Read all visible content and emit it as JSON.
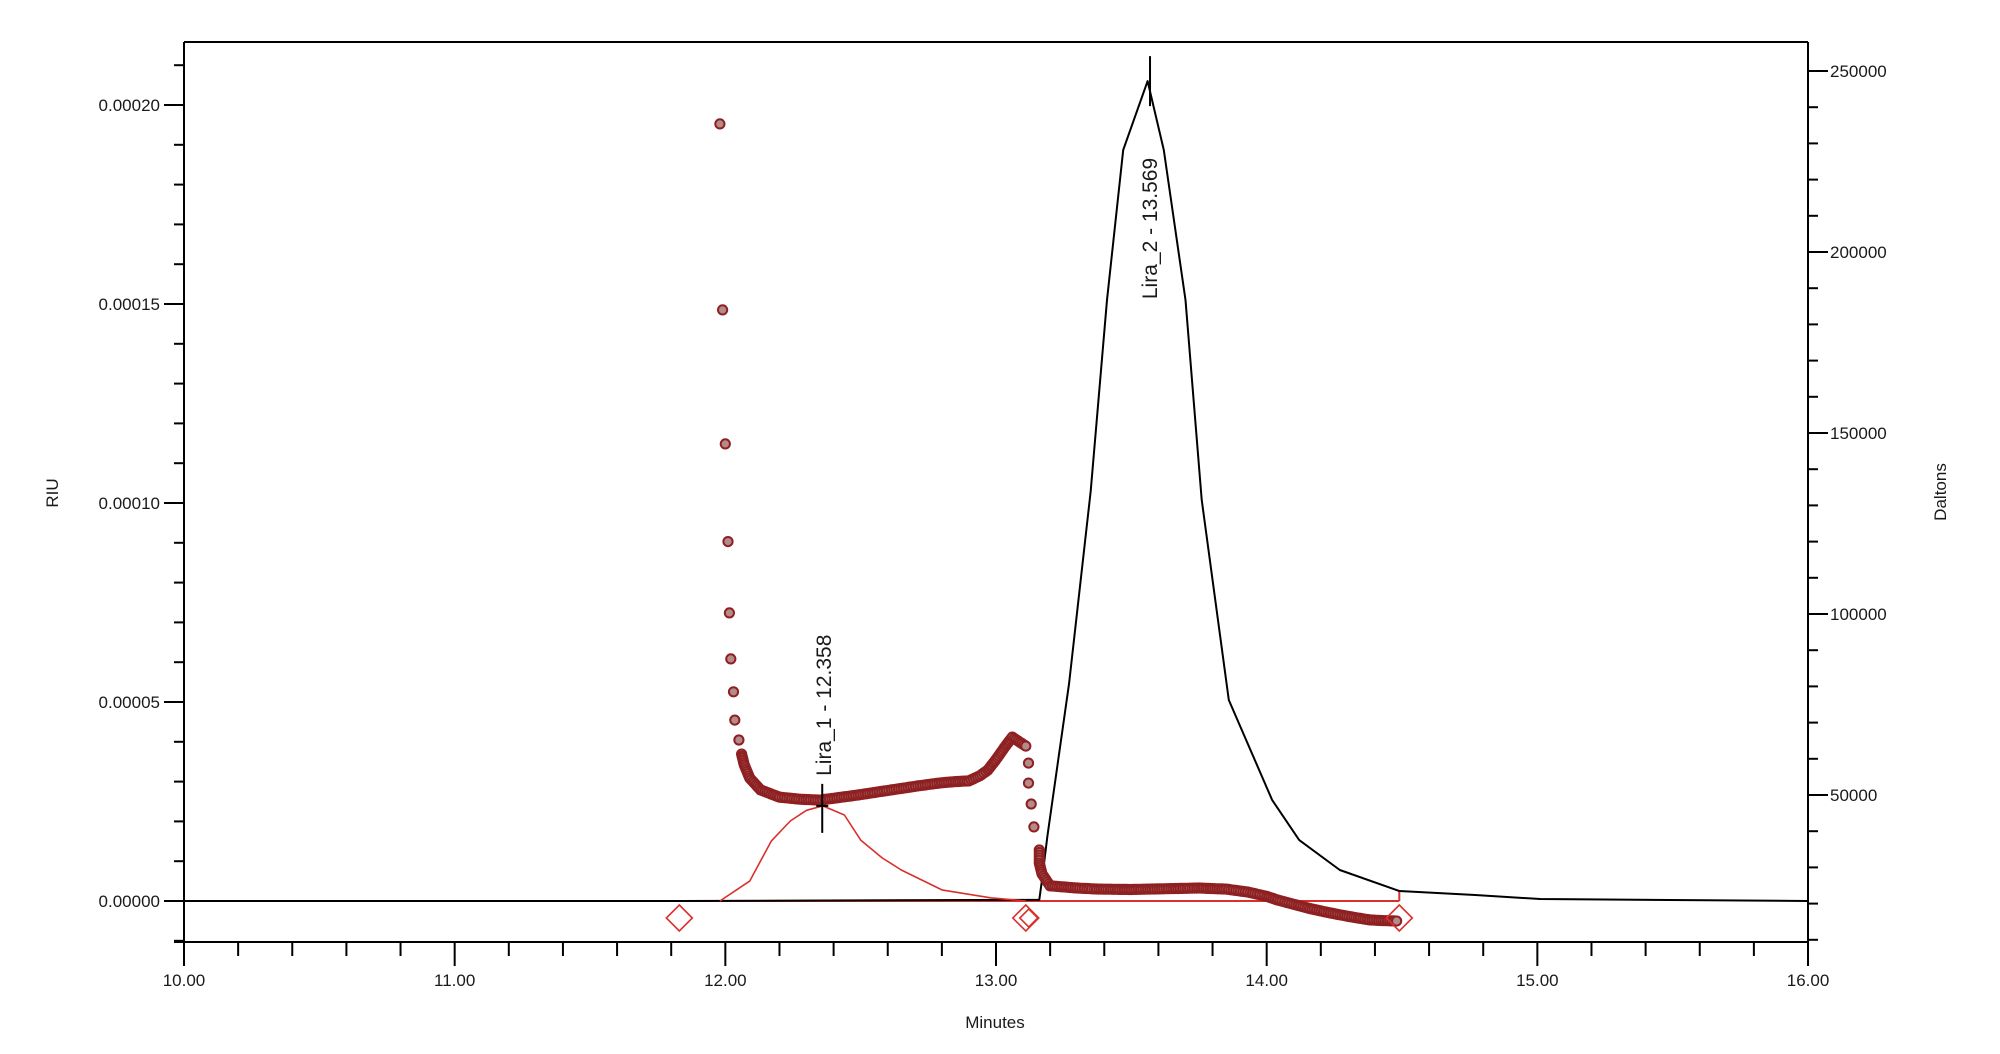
{
  "chart_data": {
    "type": "line",
    "title": "",
    "xlabel": "Minutes",
    "ylabel": "RIU",
    "y2label": "Daltons",
    "xlim": [
      10.0,
      16.0
    ],
    "ylim": [
      -1e-05,
      0.000218
    ],
    "y2lim": [
      8000,
      277000
    ],
    "grid": false,
    "legend": null,
    "x_ticks": [
      "10.00",
      "11.00",
      "12.00",
      "13.00",
      "14.00",
      "15.00",
      "16.00"
    ],
    "x_tick_values": [
      10,
      11,
      12,
      13,
      14,
      15,
      16
    ],
    "x_minor_step": 0.2,
    "y_ticks": [
      "0.00000",
      "0.00005",
      "0.00010",
      "0.00015",
      "0.00020"
    ],
    "y_tick_values": [
      0,
      5e-05,
      0.0001,
      0.00015,
      0.0002
    ],
    "y_minor_step": 1e-05,
    "y2_ticks": [
      "50000",
      "100000",
      "150000",
      "200000",
      "250000"
    ],
    "y2_tick_values": [
      50000,
      100000,
      150000,
      200000,
      250000
    ],
    "y2_minor_step": 10000,
    "series": [
      {
        "name": "RI chromatogram",
        "axis": "left",
        "color": "#000000",
        "style": "line",
        "x": [
          10.0,
          11.83,
          13.16,
          13.17,
          13.19,
          13.27,
          13.35,
          13.41,
          13.47,
          13.56,
          13.62,
          13.7,
          13.76,
          13.86,
          14.02,
          14.12,
          14.27,
          14.49,
          14.63,
          14.77,
          15.01,
          16.0
        ],
        "values": [
          0,
          0,
          3e-07,
          5.3e-06,
          1.63e-05,
          5.47e-05,
          0.000103,
          0.000151,
          0.0001887,
          0.000206,
          0.0001887,
          0.000151,
          0.0001008,
          5.05e-05,
          2.54e-05,
          1.53e-05,
          7.8e-06,
          2.5e-06,
          2e-06,
          1.5e-06,
          5e-07,
          0
        ]
      },
      {
        "name": "Lira_1 peak",
        "axis": "left",
        "color": "#d9302c",
        "style": "line",
        "x": [
          11.98,
          12.09,
          12.17,
          12.24,
          12.3,
          12.36,
          12.44,
          12.5,
          12.58,
          12.65,
          12.8,
          12.98,
          13.11
        ],
        "values": [
          0,
          5e-06,
          1.51e-05,
          2.01e-05,
          2.28e-05,
          2.39e-05,
          2.16e-05,
          1.53e-05,
          1.08e-05,
          7.8e-06,
          2.8e-06,
          8e-07,
          0
        ]
      },
      {
        "name": "Molar mass (Daltons)",
        "axis": "right",
        "color": "#9e2a2b",
        "style": "markers",
        "x": [
          11.98,
          11.99,
          12.0,
          12.01,
          12.015,
          12.02,
          12.03,
          12.035,
          12.05,
          12.06,
          12.07,
          12.09,
          12.13,
          12.2,
          12.28,
          12.35,
          12.42,
          12.49,
          12.56,
          12.64,
          12.72,
          12.79,
          12.85,
          12.9,
          12.94,
          12.97,
          13.0,
          13.03,
          13.06,
          13.11,
          13.12,
          13.12,
          13.13,
          13.14,
          13.16,
          13.16,
          13.17,
          13.2,
          13.3,
          13.38,
          13.5,
          13.62,
          13.75,
          13.85,
          13.93,
          14.0,
          14.04,
          14.1,
          14.15,
          14.21,
          14.27,
          14.33,
          14.38,
          14.43,
          14.48
        ],
        "values": [
          235400,
          184000,
          147000,
          120000,
          100300,
          87600,
          78500,
          70700,
          65200,
          61300,
          58300,
          54700,
          51400,
          49400,
          48800,
          48600,
          49300,
          50000,
          50800,
          51700,
          52600,
          53300,
          53700,
          53900,
          55300,
          56900,
          59800,
          63000,
          66000,
          63500,
          58800,
          53300,
          47500,
          41200,
          34800,
          31200,
          28200,
          24900,
          24300,
          24000,
          23900,
          24100,
          24300,
          24000,
          23200,
          22000,
          21000,
          19800,
          18800,
          17800,
          16900,
          16100,
          15500,
          15300,
          15200
        ]
      }
    ],
    "baseline": {
      "color": "#d9302c",
      "x": [
        11.83,
        14.49
      ],
      "value": 0
    },
    "integration_markers": [
      {
        "x": 11.83,
        "type": "diamond"
      },
      {
        "x": 13.11,
        "type": "double-diamond"
      },
      {
        "x": 14.49,
        "type": "diamond"
      }
    ],
    "peaks": [
      {
        "name": "Lira_1",
        "time": 12.358,
        "label": "Lira_1 - 12.358",
        "apex_riu": 2.39e-05
      },
      {
        "name": "Lira_2",
        "time": 13.569,
        "label": "Lira_2 - 13.569",
        "apex_riu": 0.000206
      }
    ]
  },
  "labels": {
    "xlabel": "Minutes",
    "ylabel": "RIU",
    "y2label": "Daltons",
    "peak1": "Lira_1 - 12.358",
    "peak2": "Lira_2 - 13.569"
  }
}
